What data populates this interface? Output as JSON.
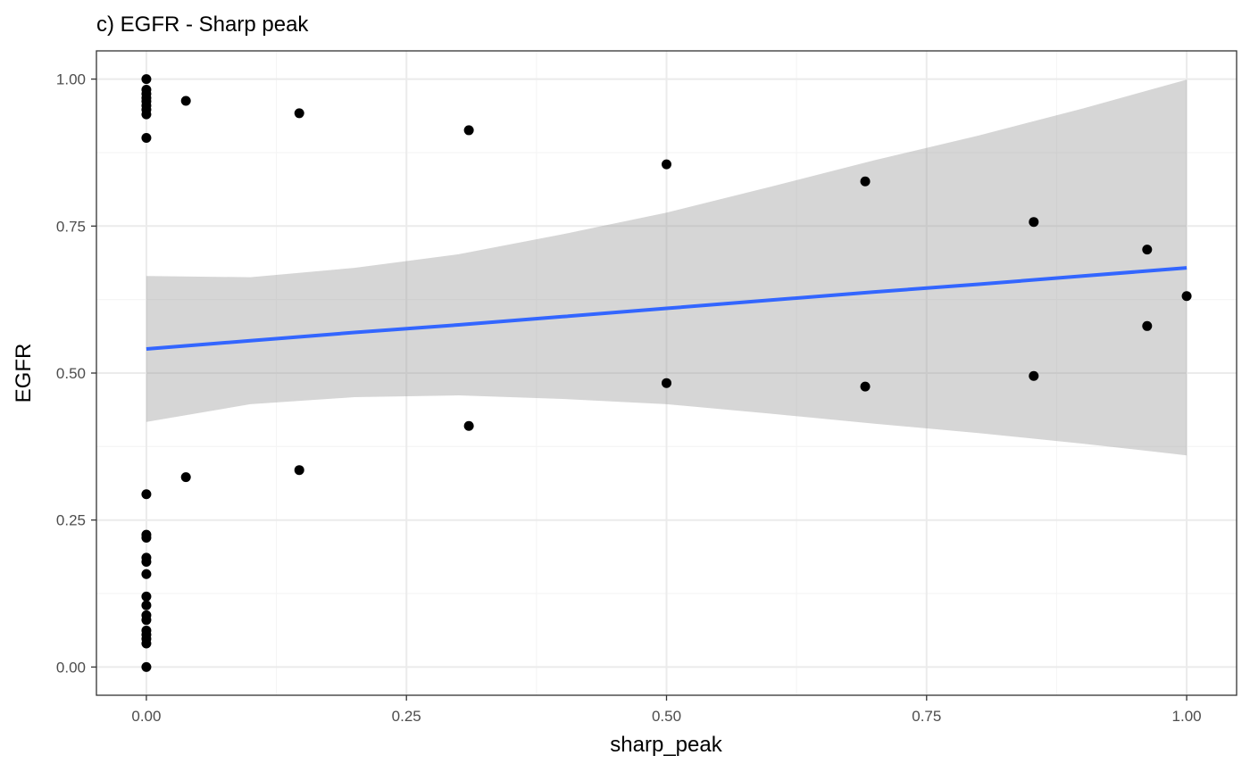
{
  "chart_data": {
    "type": "scatter",
    "title": "c) EGFR - Sharp peak",
    "xlabel": "sharp_peak",
    "ylabel": "EGFR",
    "xlim": [
      -0.048,
      1.048
    ],
    "ylim": [
      -0.048,
      1.048
    ],
    "x_ticks": [
      0.0,
      0.25,
      0.5,
      0.75,
      1.0
    ],
    "x_tick_labels": [
      "0.00",
      "0.25",
      "0.50",
      "0.75",
      "1.00"
    ],
    "y_ticks": [
      0.0,
      0.25,
      0.5,
      0.75,
      1.0
    ],
    "y_tick_labels": [
      "0.00",
      "0.25",
      "0.50",
      "0.75",
      "1.00"
    ],
    "grid": true,
    "theme": "bw",
    "colors": {
      "points": "#000000",
      "fit_line": "#3366FF",
      "confidence_band": "#999999",
      "panel_border": "#333333",
      "grid_major": "#ebebeb",
      "grid_minor": "#f5f5f5"
    },
    "points": [
      {
        "x": 0.0,
        "y": 1.0
      },
      {
        "x": 0.0,
        "y": 0.982
      },
      {
        "x": 0.0,
        "y": 0.975
      },
      {
        "x": 0.0,
        "y": 0.968
      },
      {
        "x": 0.0,
        "y": 0.962
      },
      {
        "x": 0.0,
        "y": 0.955
      },
      {
        "x": 0.0,
        "y": 0.948
      },
      {
        "x": 0.0,
        "y": 0.94
      },
      {
        "x": 0.0,
        "y": 0.9
      },
      {
        "x": 0.038,
        "y": 0.963
      },
      {
        "x": 0.147,
        "y": 0.942
      },
      {
        "x": 0.31,
        "y": 0.913
      },
      {
        "x": 0.5,
        "y": 0.855
      },
      {
        "x": 0.691,
        "y": 0.826
      },
      {
        "x": 0.853,
        "y": 0.757
      },
      {
        "x": 0.962,
        "y": 0.71
      },
      {
        "x": 1.0,
        "y": 0.631
      },
      {
        "x": 0.962,
        "y": 0.58
      },
      {
        "x": 0.853,
        "y": 0.495
      },
      {
        "x": 0.5,
        "y": 0.483
      },
      {
        "x": 0.691,
        "y": 0.477
      },
      {
        "x": 0.31,
        "y": 0.41
      },
      {
        "x": 0.147,
        "y": 0.335
      },
      {
        "x": 0.038,
        "y": 0.323
      },
      {
        "x": 0.0,
        "y": 0.294
      },
      {
        "x": 0.0,
        "y": 0.225
      },
      {
        "x": 0.0,
        "y": 0.22
      },
      {
        "x": 0.0,
        "y": 0.186
      },
      {
        "x": 0.0,
        "y": 0.179
      },
      {
        "x": 0.0,
        "y": 0.158
      },
      {
        "x": 0.0,
        "y": 0.12
      },
      {
        "x": 0.0,
        "y": 0.105
      },
      {
        "x": 0.0,
        "y": 0.088
      },
      {
        "x": 0.0,
        "y": 0.08
      },
      {
        "x": 0.0,
        "y": 0.062
      },
      {
        "x": 0.0,
        "y": 0.055
      },
      {
        "x": 0.0,
        "y": 0.048
      },
      {
        "x": 0.0,
        "y": 0.04
      },
      {
        "x": 0.0,
        "y": 0.0
      }
    ],
    "fit": {
      "method": "linear",
      "x": [
        0.0,
        0.1,
        0.2,
        0.3,
        0.4,
        0.5,
        0.6,
        0.7,
        0.8,
        0.9,
        1.0
      ],
      "y": [
        0.541,
        0.555,
        0.569,
        0.582,
        0.596,
        0.61,
        0.624,
        0.638,
        0.651,
        0.665,
        0.679
      ],
      "lower": [
        0.417,
        0.447,
        0.459,
        0.462,
        0.456,
        0.447,
        0.431,
        0.414,
        0.398,
        0.38,
        0.36
      ],
      "upper": [
        0.665,
        0.663,
        0.679,
        0.702,
        0.736,
        0.773,
        0.817,
        0.862,
        0.904,
        0.95,
        0.999
      ]
    }
  }
}
